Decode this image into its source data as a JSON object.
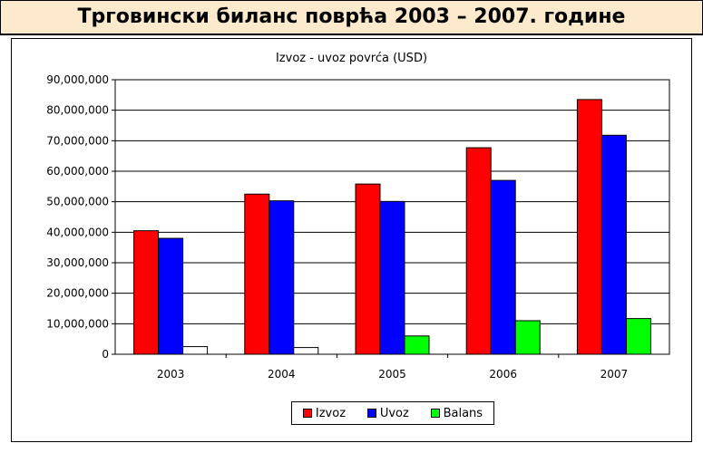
{
  "header": {
    "title": "Трговински биланс поврћа 2003 – 2007. године"
  },
  "chart_data": {
    "type": "bar",
    "title": "Izvoz - uvoz povrća  (USD)",
    "categories": [
      "2003",
      "2004",
      "2005",
      "2006",
      "2007"
    ],
    "series": [
      {
        "name": "Izvoz",
        "color": "#ff0000",
        "values": [
          40500000,
          52500000,
          55800000,
          67700000,
          83500000
        ]
      },
      {
        "name": "Uvoz",
        "color": "#0000ff",
        "values": [
          38000000,
          50300000,
          50100000,
          57000000,
          71800000
        ]
      },
      {
        "name": "Balans",
        "color_by_value": {
          "positive": "#00ff00",
          "negative": "#ffffff"
        },
        "values": [
          2500000,
          2200000,
          6000000,
          11000000,
          11700000
        ]
      }
    ],
    "ylim": [
      0,
      90000000
    ],
    "yticks": [
      "0",
      "10,000,000",
      "20,000,000",
      "30,000,000",
      "40,000,000",
      "50,000,000",
      "60,000,000",
      "70,000,000",
      "80,000,000",
      "90,000,000"
    ],
    "grid": true,
    "legend_position": "bottom",
    "xlabel": "",
    "ylabel": ""
  },
  "legend": {
    "items": [
      {
        "label": "Izvoz",
        "color": "#ff0000"
      },
      {
        "label": "Uvoz",
        "color": "#0000ff"
      },
      {
        "label": "Balans",
        "color": "#00ff00"
      }
    ]
  }
}
